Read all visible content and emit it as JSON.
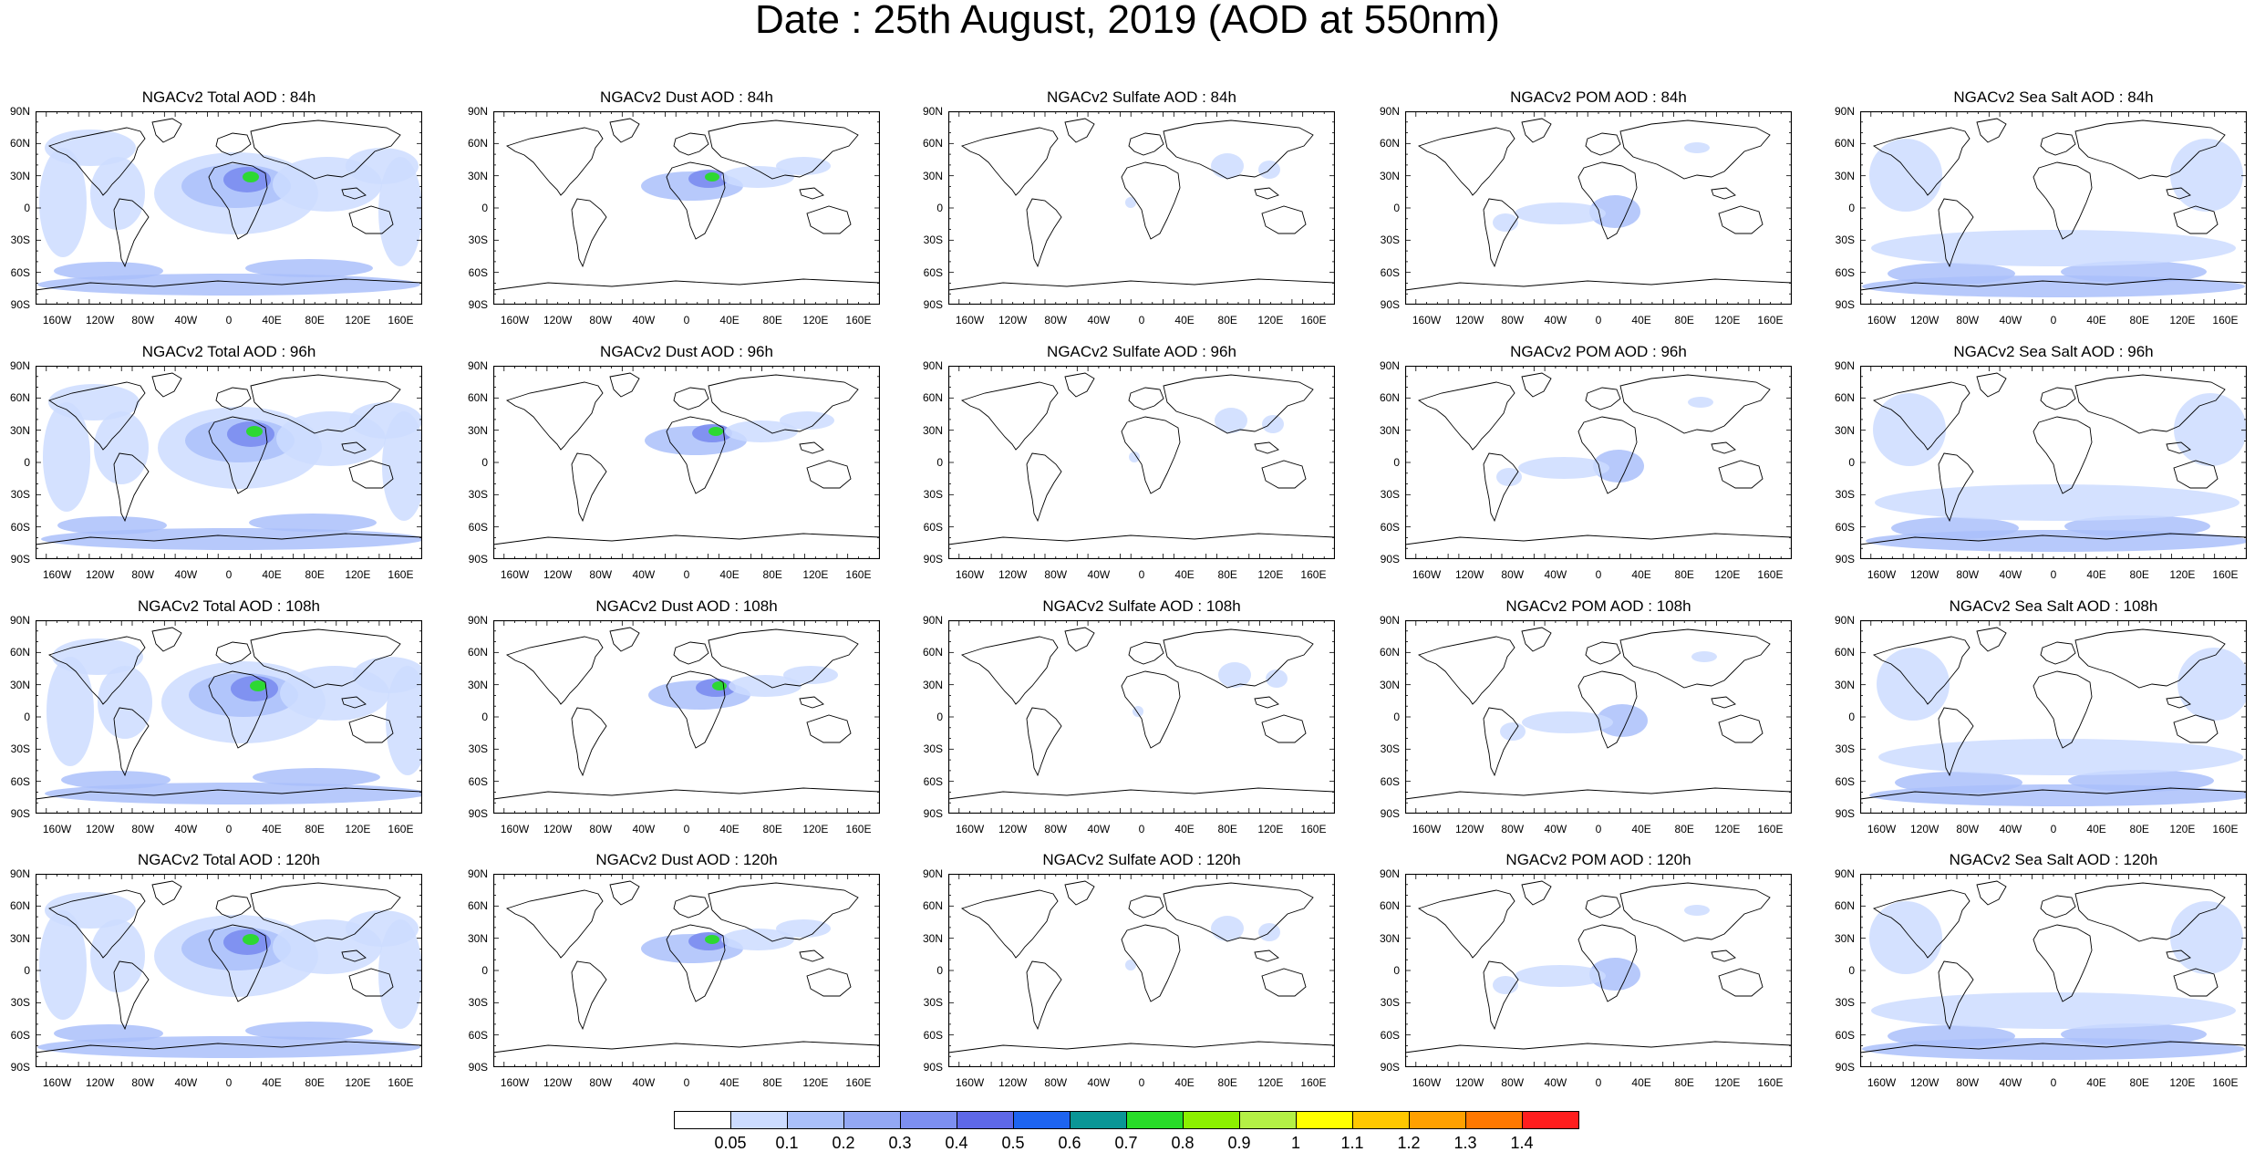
{
  "title": "Date : 25th August, 2019 (AOD at 550nm)",
  "lat_ticks": [
    "90N",
    "60N",
    "30N",
    "0",
    "30S",
    "60S",
    "90S"
  ],
  "lon_ticks": [
    "160W",
    "120W",
    "80W",
    "40W",
    "0",
    "40E",
    "80E",
    "120E",
    "160E"
  ],
  "rows": [
    {
      "lead": "84h",
      "titles": [
        "NGACv2 Total AOD : 84h",
        "NGACv2 Dust AOD : 84h",
        "NGACv2 Sulfate AOD : 84h",
        "NGACv2 POM AOD : 84h",
        "NGACv2 Sea Salt AOD : 84h"
      ]
    },
    {
      "lead": "96h",
      "titles": [
        "NGACv2 Total AOD : 96h",
        "NGACv2 Dust AOD : 96h",
        "NGACv2 Sulfate AOD : 96h",
        "NGACv2 POM AOD : 96h",
        "NGACv2 Sea Salt AOD : 96h"
      ]
    },
    {
      "lead": "108h",
      "titles": [
        "NGACv2 Total AOD : 108h",
        "NGACv2 Dust AOD : 108h",
        "NGACv2 Sulfate AOD : 108h",
        "NGACv2 POM AOD : 108h",
        "NGACv2 Sea Salt AOD : 108h"
      ]
    },
    {
      "lead": "120h",
      "titles": [
        "NGACv2 Total AOD : 120h",
        "NGACv2 Dust AOD : 120h",
        "NGACv2 Sulfate AOD : 120h",
        "NGACv2 POM AOD : 120h",
        "NGACv2 Sea Salt  AOD : 120h"
      ]
    }
  ],
  "species": [
    "Total",
    "Dust",
    "Sulfate",
    "POM",
    "Sea Salt"
  ],
  "colorbar": {
    "labels": [
      "0.05",
      "0.1",
      "0.2",
      "0.3",
      "0.4",
      "0.5",
      "0.6",
      "0.7",
      "0.8",
      "0.9",
      "1",
      "1.1",
      "1.2",
      "1.3",
      "1.4"
    ],
    "colors": [
      "#ffffff",
      "#ccdcff",
      "#aac0fa",
      "#93a8f4",
      "#7d8ff0",
      "#5e68e8",
      "#1e64f0",
      "#0a9696",
      "#28dc28",
      "#8cf000",
      "#b4f046",
      "#ffff00",
      "#ffc800",
      "#ffa000",
      "#ff7800",
      "#ff1e1e"
    ]
  }
}
